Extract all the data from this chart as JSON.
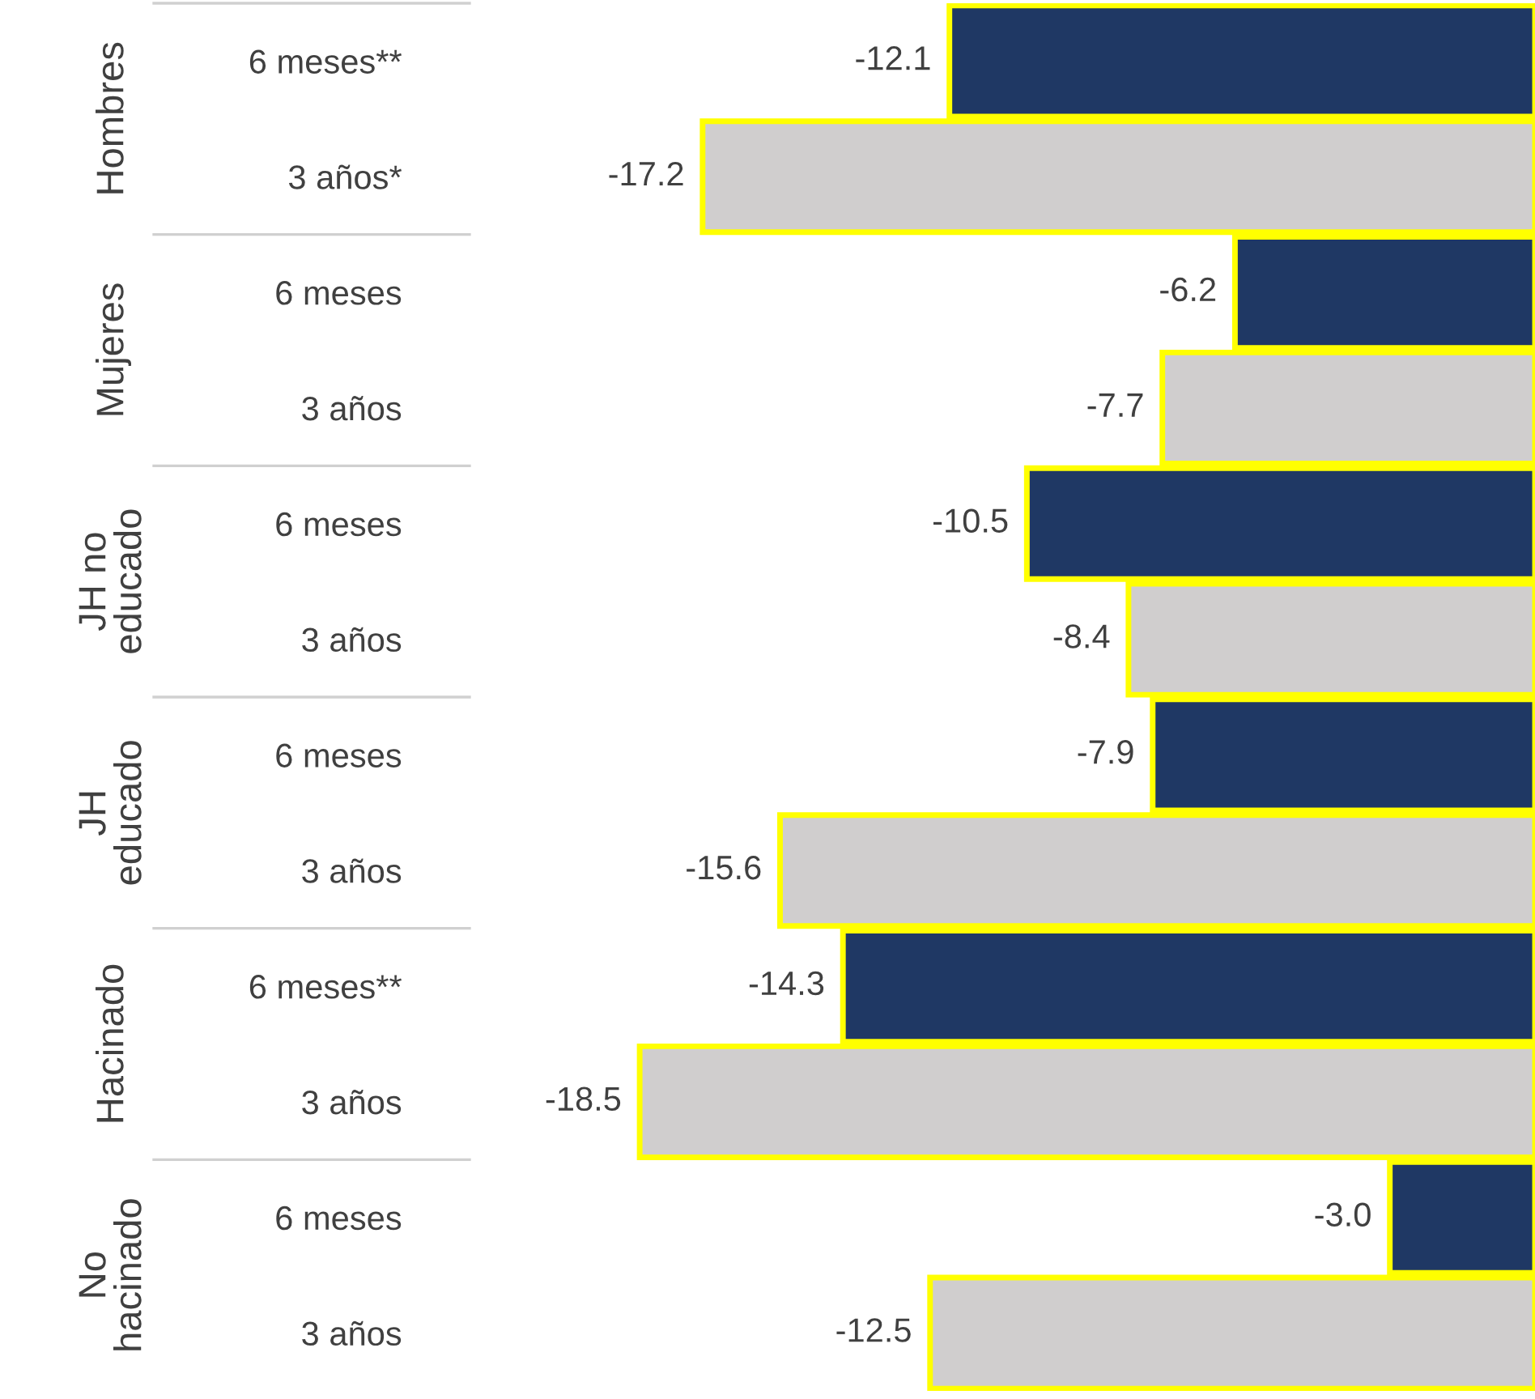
{
  "chart_data": {
    "type": "bar",
    "orientation": "horizontal",
    "tick_labels": "y",
    "categories": [
      "6 meses**",
      "3 años*",
      "6 meses",
      "3 años",
      "6 meses",
      "3 años",
      "6 meses",
      "3 años",
      "6 meses**",
      "3 años",
      "6 meses",
      "3 años"
    ],
    "values": [
      -12.1,
      -17.2,
      -6.2,
      -7.7,
      -10.5,
      -8.4,
      -7.9,
      -15.6,
      -14.3,
      -18.5,
      -3.0,
      -12.5
    ],
    "value_labels": [
      "-12.1",
      "-17.2",
      "-6.2",
      "-7.7",
      "-10.5",
      "-8.4",
      "-7.9",
      "-15.6",
      "-14.3",
      "-18.5",
      "-3.0",
      "-12.5"
    ],
    "colors": [
      "#1f3864",
      "#d0cece",
      "#1f3864",
      "#d0cece",
      "#1f3864",
      "#d0cece",
      "#1f3864",
      "#d0cece",
      "#1f3864",
      "#d0cece",
      "#1f3864",
      "#d0cece"
    ],
    "annotations": [
      "Hombres",
      "Mujeres",
      "JH no\neducado",
      "JH\neducado",
      "Hacinado",
      "No\nhacinado"
    ]
  }
}
